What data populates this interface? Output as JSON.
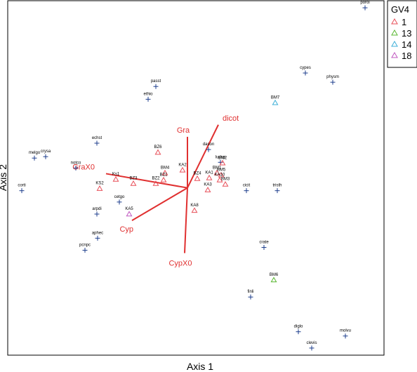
{
  "chart_data": {
    "type": "scatter",
    "subtype": "ordination-biplot",
    "xlabel": "Axis 1",
    "ylabel": "Axis 2",
    "xlim": [
      0,
      536
    ],
    "ylim": [
      -500,
      0
    ],
    "grid": false,
    "legend": {
      "title": "GV4",
      "placement": "top-right-outside",
      "entries": [
        {
          "label": "1",
          "color": "#e8505a"
        },
        {
          "label": "13",
          "color": "#5ab832"
        },
        {
          "label": "14",
          "color": "#3fb0d8"
        },
        {
          "label": "18",
          "color": "#c058c0"
        }
      ]
    },
    "species": [
      {
        "label": "porol",
        "x": 509,
        "y": -10
      },
      {
        "label": "cypes",
        "x": 424,
        "y": -102
      },
      {
        "label": "physm",
        "x": 463,
        "y": -115
      },
      {
        "label": "passt",
        "x": 211,
        "y": -121
      },
      {
        "label": "ethio",
        "x": 200,
        "y": -139
      },
      {
        "label": "echst",
        "x": 127,
        "y": -201
      },
      {
        "label": "crysa",
        "x": 54,
        "y": -220
      },
      {
        "label": "melgo",
        "x": 38,
        "y": -222
      },
      {
        "label": "notco",
        "x": 97,
        "y": -236
      },
      {
        "label": "ludvp",
        "x": 303,
        "y": -228
      },
      {
        "label": "dason",
        "x": 286,
        "y": -210
      },
      {
        "label": "cicit",
        "x": 340,
        "y": -268
      },
      {
        "label": "tristh",
        "x": 384,
        "y": -268
      },
      {
        "label": "corti",
        "x": 20,
        "y": -268
      },
      {
        "label": "cetgo",
        "x": 159,
        "y": -284
      },
      {
        "label": "arpdi",
        "x": 127,
        "y": -301
      },
      {
        "label": "aphec",
        "x": 128,
        "y": -335
      },
      {
        "label": "pcnpc",
        "x": 110,
        "y": -352
      },
      {
        "label": "crate",
        "x": 365,
        "y": -348
      },
      {
        "label": "finli",
        "x": 346,
        "y": -418
      },
      {
        "label": "diglo",
        "x": 414,
        "y": -467
      },
      {
        "label": "molvu",
        "x": 481,
        "y": -473
      },
      {
        "label": "clevis",
        "x": 433,
        "y": -490
      }
    ],
    "sites": [
      {
        "label": "BM7",
        "group": "14",
        "x": 381,
        "y": -144
      },
      {
        "label": "BM6",
        "group": "13",
        "x": 379,
        "y": -394
      },
      {
        "label": "BZ6",
        "group": "1",
        "x": 214,
        "y": -214
      },
      {
        "label": "BM4",
        "group": "1",
        "x": 224,
        "y": -243
      },
      {
        "label": "KA2",
        "group": "1",
        "x": 249,
        "y": -239
      },
      {
        "label": "Ks1",
        "group": "1",
        "x": 154,
        "y": -252
      },
      {
        "label": "BZ3",
        "group": "1",
        "x": 179,
        "y": -258
      },
      {
        "label": "BZ1",
        "group": "1",
        "x": 222,
        "y": -253
      },
      {
        "label": "BZ2",
        "group": "1",
        "x": 211,
        "y": -258
      },
      {
        "label": "KS2",
        "group": "1",
        "x": 131,
        "y": -265
      },
      {
        "label": "BZ4",
        "group": "1",
        "x": 270,
        "y": -251
      },
      {
        "label": "KA1",
        "group": "1",
        "x": 287,
        "y": -250
      },
      {
        "label": "BM1",
        "group": "1",
        "x": 298,
        "y": -243
      },
      {
        "label": "BM5",
        "group": "1",
        "x": 304,
        "y": -246
      },
      {
        "label": "KA10",
        "group": "1",
        "x": 302,
        "y": -253
      },
      {
        "label": "BM3",
        "group": "1",
        "x": 310,
        "y": -259
      },
      {
        "label": "BM2",
        "group": "1",
        "x": 306,
        "y": -229
      },
      {
        "label": "KA3",
        "group": "1",
        "x": 285,
        "y": -267
      },
      {
        "label": "KA8",
        "group": "1",
        "x": 266,
        "y": -296
      },
      {
        "label": "KA5",
        "group": "18",
        "x": 173,
        "y": -301
      }
    ],
    "vectors": [
      {
        "label": "Gra",
        "x": 256,
        "y": -192
      },
      {
        "label": "dicot",
        "x": 300,
        "y": -175
      },
      {
        "label": "GraX0",
        "x": 140,
        "y": -244
      },
      {
        "label": "Cyp",
        "x": 177,
        "y": -310
      },
      {
        "label": "CypX0",
        "x": 252,
        "y": -356
      }
    ],
    "origin": {
      "x": 256,
      "y": -264
    }
  }
}
